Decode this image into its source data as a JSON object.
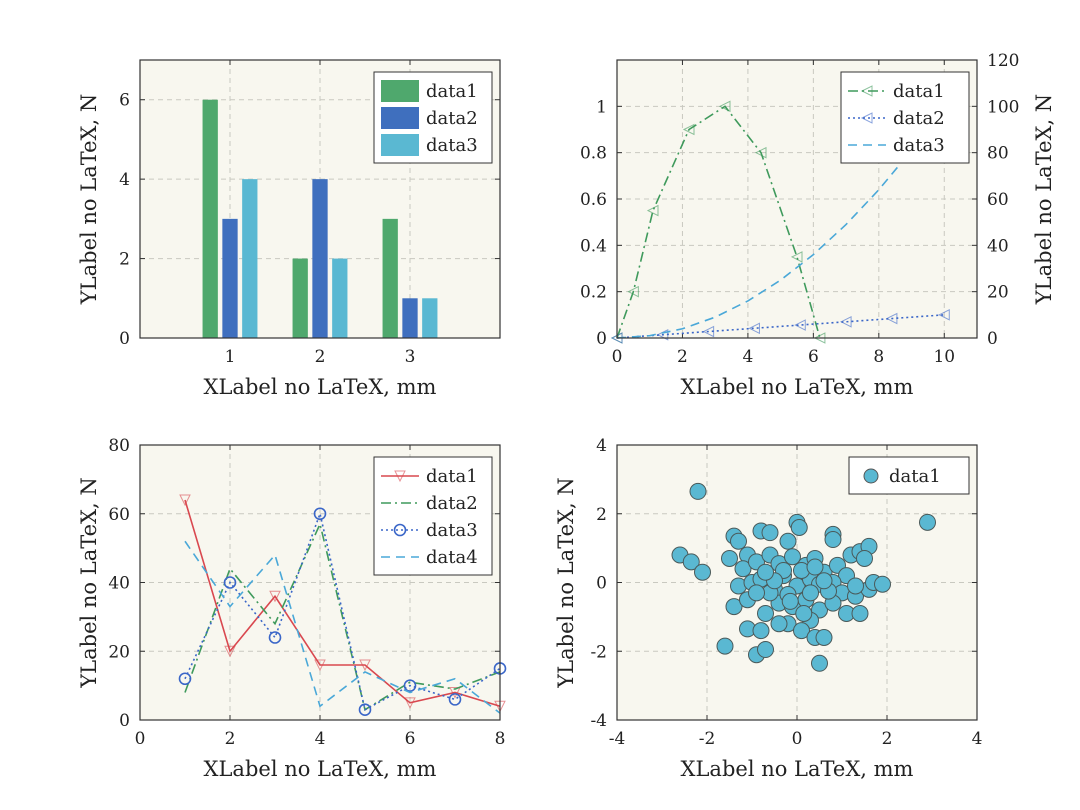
{
  "chart_data": [
    {
      "type": "bar",
      "xlabel": "XLabel no LaTeX, mm",
      "ylabel": "YLabel no LaTeX, N",
      "categories": [
        "1",
        "2",
        "3"
      ],
      "xlim": [
        0,
        4
      ],
      "ylim": [
        0,
        7
      ],
      "yticks": [
        0,
        2,
        4,
        6
      ],
      "grid": true,
      "legend": "top-right",
      "series": [
        {
          "name": "data1",
          "values": [
            6,
            2,
            3
          ],
          "color": "#4fa86d"
        },
        {
          "name": "data2",
          "values": [
            3,
            4,
            1
          ],
          "color": "#3f6fbe"
        },
        {
          "name": "data3",
          "values": [
            4,
            2,
            1
          ],
          "color": "#5ab8d2"
        }
      ]
    },
    {
      "type": "line",
      "xlabel": "XLabel no LaTeX, mm",
      "ylabel_right": "YLabel no LaTeX, N",
      "xlim": [
        0,
        11
      ],
      "ylim": [
        0,
        1.2
      ],
      "ylim_right": [
        0,
        120
      ],
      "xticks": [
        0,
        2,
        4,
        6,
        8,
        10
      ],
      "yticks": [
        0,
        0.2,
        0.4,
        0.6,
        0.8,
        1
      ],
      "yticks_right": [
        0,
        20,
        40,
        60,
        80,
        100,
        120
      ],
      "grid": true,
      "legend": "top-right",
      "series": [
        {
          "name": "data1",
          "axis": "left",
          "color": "#3f9a5c",
          "dash": "dashdot",
          "marker": "triangle-left",
          "x": [
            0,
            0.5,
            1.1,
            2.2,
            3.3,
            4.4,
            5.5,
            6.2
          ],
          "y": [
            0,
            0.2,
            0.55,
            0.9,
            1.0,
            0.8,
            0.35,
            0
          ]
        },
        {
          "name": "data2",
          "axis": "right",
          "color": "#3a66c8",
          "dash": "dotted",
          "marker": "triangle-left",
          "x": [
            0,
            1.4,
            2.8,
            4.2,
            5.6,
            7.0,
            8.4,
            10
          ],
          "y": [
            0,
            1.4,
            2.8,
            4.2,
            5.6,
            7.0,
            8.4,
            10
          ]
        },
        {
          "name": "data3",
          "axis": "right",
          "color": "#4aa8d8",
          "dash": "dashed",
          "marker": "none",
          "x": [
            0,
            1,
            2,
            3,
            4,
            5,
            6,
            7,
            8,
            9,
            10
          ],
          "y": [
            0,
            1,
            4,
            9,
            16,
            25,
            36,
            49,
            64,
            81,
            100
          ]
        }
      ]
    },
    {
      "type": "line",
      "xlabel": "XLabel no LaTeX, mm",
      "ylabel": "YLabel no LaTeX, N",
      "x": [
        1,
        2,
        3,
        4,
        5,
        6,
        7,
        8
      ],
      "xlim": [
        0,
        8
      ],
      "ylim": [
        0,
        80
      ],
      "xticks": [
        0,
        2,
        4,
        6,
        8
      ],
      "yticks": [
        0,
        20,
        40,
        60,
        80
      ],
      "grid": true,
      "legend": "top-right",
      "series": [
        {
          "name": "data1",
          "color": "#d9484f",
          "dash": "solid",
          "marker": "triangle-down",
          "y": [
            64,
            20,
            36,
            16,
            16,
            5,
            8,
            4
          ]
        },
        {
          "name": "data2",
          "color": "#3f9a5c",
          "dash": "dashdot",
          "marker": "none",
          "y": [
            8,
            44,
            28,
            57,
            3,
            11,
            9,
            14
          ]
        },
        {
          "name": "data3",
          "color": "#3a66c8",
          "dash": "dotted",
          "marker": "circle",
          "y": [
            12,
            40,
            24,
            60,
            3,
            10,
            6,
            15
          ]
        },
        {
          "name": "data4",
          "color": "#4aa8d8",
          "dash": "dashed",
          "marker": "none",
          "y": [
            52,
            33,
            48,
            4,
            14,
            8,
            12,
            2
          ]
        }
      ]
    },
    {
      "type": "scatter",
      "xlabel": "XLabel no LaTeX, mm",
      "ylabel": "YLabel no LaTeX, N",
      "xlim": [
        -4,
        4
      ],
      "ylim": [
        -4,
        4
      ],
      "xticks": [
        -4,
        -2,
        0,
        2,
        4
      ],
      "yticks": [
        -4,
        -2,
        0,
        2,
        4
      ],
      "grid": true,
      "legend": "top-right",
      "series": [
        {
          "name": "data1",
          "color": "#5ab8d2",
          "points": [
            [
              -2.2,
              2.65
            ],
            [
              2.9,
              1.75
            ],
            [
              -2.6,
              0.8
            ],
            [
              -2.35,
              0.6
            ],
            [
              -2.1,
              0.3
            ],
            [
              -1.6,
              -1.85
            ],
            [
              -0.9,
              -2.1
            ],
            [
              -0.7,
              -1.95
            ],
            [
              0.5,
              -2.35
            ],
            [
              -1.4,
              1.35
            ],
            [
              -1.3,
              1.2
            ],
            [
              -0.8,
              1.5
            ],
            [
              -0.6,
              1.45
            ],
            [
              0.0,
              1.75
            ],
            [
              0.05,
              1.6
            ],
            [
              0.8,
              1.4
            ],
            [
              0.8,
              1.25
            ],
            [
              -0.2,
              1.2
            ],
            [
              -1.5,
              0.7
            ],
            [
              -1.1,
              0.8
            ],
            [
              -1.2,
              0.4
            ],
            [
              -0.9,
              0.6
            ],
            [
              -0.6,
              0.8
            ],
            [
              -0.4,
              0.55
            ],
            [
              -0.1,
              0.75
            ],
            [
              0.2,
              0.5
            ],
            [
              0.4,
              0.7
            ],
            [
              0.6,
              0.3
            ],
            [
              0.9,
              0.5
            ],
            [
              1.2,
              0.8
            ],
            [
              1.4,
              0.9
            ],
            [
              1.6,
              1.05
            ],
            [
              1.5,
              0.7
            ],
            [
              1.1,
              0.2
            ],
            [
              -1.3,
              -0.1
            ],
            [
              -1.0,
              0.0
            ],
            [
              -0.8,
              0.1
            ],
            [
              -0.5,
              -0.2
            ],
            [
              -0.3,
              0.2
            ],
            [
              0.0,
              -0.1
            ],
            [
              0.3,
              0.1
            ],
            [
              0.5,
              -0.05
            ],
            [
              0.8,
              0.0
            ],
            [
              1.0,
              -0.3
            ],
            [
              1.3,
              -0.4
            ],
            [
              1.6,
              -0.2
            ],
            [
              1.7,
              0.0
            ],
            [
              1.9,
              -0.05
            ],
            [
              -1.4,
              -0.7
            ],
            [
              -1.1,
              -0.5
            ],
            [
              -0.7,
              -0.9
            ],
            [
              -0.4,
              -0.6
            ],
            [
              -0.1,
              -0.7
            ],
            [
              0.2,
              -0.5
            ],
            [
              0.5,
              -0.8
            ],
            [
              0.8,
              -0.6
            ],
            [
              1.1,
              -0.9
            ],
            [
              1.4,
              -0.9
            ],
            [
              -0.2,
              -1.2
            ],
            [
              0.3,
              -1.1
            ],
            [
              -1.1,
              -1.35
            ],
            [
              -0.8,
              -1.4
            ],
            [
              -0.4,
              -1.2
            ],
            [
              0.1,
              -1.4
            ],
            [
              0.4,
              -1.6
            ],
            [
              0.6,
              -1.6
            ],
            [
              -0.6,
              -0.3
            ],
            [
              -0.2,
              -0.35
            ],
            [
              0.1,
              0.35
            ],
            [
              0.4,
              0.45
            ],
            [
              -0.3,
              0.35
            ],
            [
              -0.5,
              0.05
            ],
            [
              0.7,
              -0.25
            ],
            [
              1.3,
              -0.1
            ],
            [
              -0.9,
              -0.3
            ],
            [
              0.15,
              -0.9
            ],
            [
              -0.15,
              -0.55
            ],
            [
              0.6,
              0.05
            ],
            [
              -0.7,
              0.3
            ],
            [
              0.3,
              -0.3
            ]
          ]
        }
      ]
    }
  ]
}
